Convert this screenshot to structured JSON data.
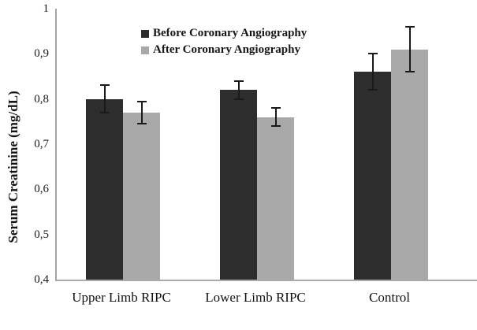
{
  "figure": {
    "background": "#ffffff"
  },
  "chart_data": {
    "type": "bar",
    "title": "",
    "xlabel": "",
    "ylabel": "Serum Creatinine (mg/dL)",
    "categories": [
      "Upper Limb RIPC",
      "Lower Limb RIPC",
      "Control"
    ],
    "series": [
      {
        "name": "Before Coronary Angiography",
        "color": "#2d2d2d",
        "values": [
          0.8,
          0.82,
          0.86
        ],
        "errors": [
          0.03,
          0.02,
          0.04
        ]
      },
      {
        "name": "After Coronary Angiography",
        "color": "#a9a9a9",
        "values": [
          0.77,
          0.76,
          0.91
        ],
        "errors": [
          0.025,
          0.02,
          0.05
        ]
      }
    ],
    "ylim": [
      0.4,
      1.0
    ],
    "yticks": [
      1.0,
      0.9,
      0.8,
      0.7,
      0.6,
      0.5,
      0.4
    ],
    "ytick_labels": [
      "1",
      "0,9",
      "0,8",
      "0,7",
      "0,6",
      "0,5",
      "0,4"
    ],
    "grid": false,
    "legend_position": "top-center-inside",
    "error_bars": true,
    "decimal_separator": ","
  },
  "legend": {
    "items": [
      {
        "label": "Before Coronary Angiography",
        "color": "#2d2d2d"
      },
      {
        "label": "After Coronary Angiography",
        "color": "#a9a9a9"
      }
    ]
  },
  "axis": {
    "line_color": "#a3a3a3",
    "error_bar_color": "#1a1a1a"
  }
}
